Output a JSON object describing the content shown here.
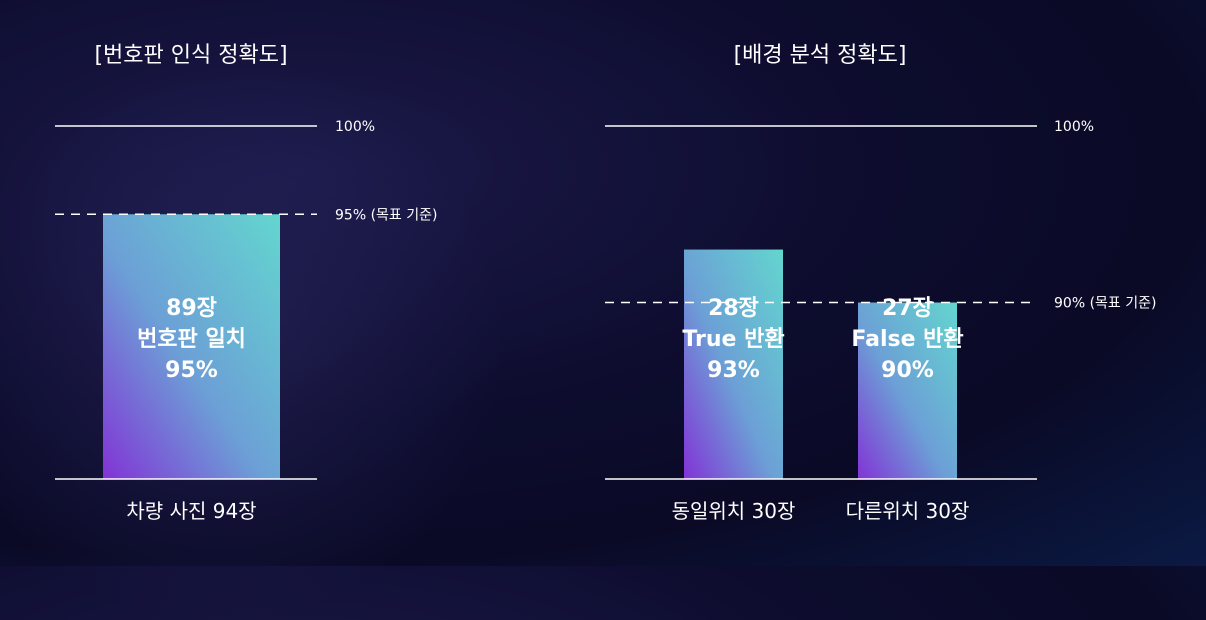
{
  "chart_data": [
    {
      "type": "bar",
      "title": "[번호판 인식 정확도]",
      "categories": [
        "차량 사진 94장"
      ],
      "values": [
        95
      ],
      "bar_labels": [
        [
          "89장",
          "번호판 일치",
          "95%"
        ]
      ],
      "ylim": [
        0,
        100
      ],
      "reference_lines": [
        {
          "value": 100,
          "label": "100%",
          "style": "solid"
        },
        {
          "value": 95,
          "label": "95% (목표 기준)",
          "style": "dashed"
        }
      ]
    },
    {
      "type": "bar",
      "title": "[배경 분석 정확도]",
      "categories": [
        "동일위치 30장",
        "다른위치 30장"
      ],
      "values": [
        93,
        90
      ],
      "bar_labels": [
        [
          "28장",
          "True 반환",
          "93%"
        ],
        [
          "27장",
          "False 반환",
          "90%"
        ]
      ],
      "ylim": [
        0,
        100
      ],
      "reference_lines": [
        {
          "value": 100,
          "label": "100%",
          "style": "solid"
        },
        {
          "value": 90,
          "label": "90% (목표 기준)",
          "style": "dashed"
        }
      ]
    }
  ],
  "colors": {
    "bar_top": "#63d6cf",
    "bar_mid": "#6c9fd6",
    "bar_bottom": "#8233d6",
    "line": "#ffffff"
  }
}
